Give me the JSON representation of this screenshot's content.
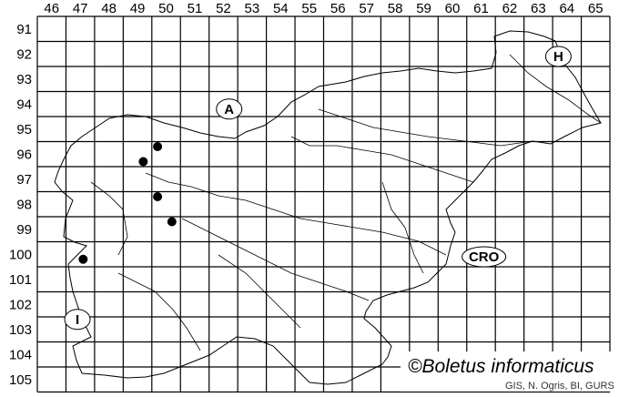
{
  "grid": {
    "columns": [
      "46",
      "47",
      "48",
      "49",
      "50",
      "51",
      "52",
      "53",
      "54",
      "55",
      "56",
      "57",
      "58",
      "59",
      "60",
      "61",
      "62",
      "63",
      "64",
      "65"
    ],
    "rows": [
      "91",
      "92",
      "93",
      "94",
      "95",
      "96",
      "97",
      "98",
      "99",
      "100",
      "101",
      "102",
      "103",
      "104",
      "105"
    ]
  },
  "country_labels": [
    {
      "id": "A",
      "text": "A",
      "col": 52.7,
      "row": 94.7
    },
    {
      "id": "H",
      "text": "H",
      "col": 64.2,
      "row": 92.6
    },
    {
      "id": "CRO",
      "text": "CRO",
      "col": 61.6,
      "row": 100.6
    },
    {
      "id": "I",
      "text": "I",
      "col": 47.4,
      "row": 103.1
    }
  ],
  "records": [
    {
      "col": 50.2,
      "row": 96.2
    },
    {
      "col": 49.7,
      "row": 96.8
    },
    {
      "col": 50.2,
      "row": 98.2
    },
    {
      "col": 50.7,
      "row": 99.2
    },
    {
      "col": 47.6,
      "row": 100.7
    }
  ],
  "credit": "©Boletus informaticus",
  "source": "GIS, N. Ogris, BI, GURS",
  "colors": {
    "lines": "#000000",
    "points": "#000000",
    "background": "#ffffff"
  }
}
